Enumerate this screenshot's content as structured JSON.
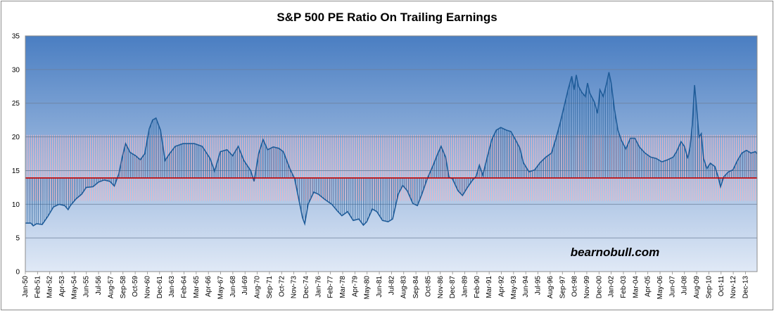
{
  "chart_data": {
    "type": "area",
    "title": "S&P 500 PE Ratio On Trailing Earnings",
    "watermark": "bearnobull.com",
    "xlabel": "",
    "ylabel": "",
    "ylim": [
      0,
      35
    ],
    "yticks": [
      "0",
      "5",
      "10",
      "15",
      "20",
      "25",
      "30",
      "35"
    ],
    "grid": true,
    "x_range": [
      1950.0,
      2014.95
    ],
    "xticks": [
      {
        "label": "Jan-50",
        "year": 1950.0
      },
      {
        "label": "Feb-51",
        "year": 1951.083
      },
      {
        "label": "Mar-52",
        "year": 1952.167
      },
      {
        "label": "Apr-53",
        "year": 1953.25
      },
      {
        "label": "May-54",
        "year": 1954.333
      },
      {
        "label": "Jun-55",
        "year": 1955.417
      },
      {
        "label": "Jul-56",
        "year": 1956.5
      },
      {
        "label": "Aug-57",
        "year": 1957.583
      },
      {
        "label": "Sep-58",
        "year": 1958.667
      },
      {
        "label": "Oct-59",
        "year": 1959.75
      },
      {
        "label": "Nov-60",
        "year": 1960.833
      },
      {
        "label": "Dec-61",
        "year": 1961.917
      },
      {
        "label": "Jan-63",
        "year": 1963.0
      },
      {
        "label": "Feb-64",
        "year": 1964.083
      },
      {
        "label": "Mar-65",
        "year": 1965.167
      },
      {
        "label": "Apr-66",
        "year": 1966.25
      },
      {
        "label": "May-67",
        "year": 1967.333
      },
      {
        "label": "Jun-68",
        "year": 1968.417
      },
      {
        "label": "Jul-69",
        "year": 1969.5
      },
      {
        "label": "Aug-70",
        "year": 1970.583
      },
      {
        "label": "Sep-71",
        "year": 1971.667
      },
      {
        "label": "Oct-72",
        "year": 1972.75
      },
      {
        "label": "Nov-73",
        "year": 1973.833
      },
      {
        "label": "Dec-74",
        "year": 1974.917
      },
      {
        "label": "Jan-76",
        "year": 1976.0
      },
      {
        "label": "Feb-77",
        "year": 1977.083
      },
      {
        "label": "Mar-78",
        "year": 1978.167
      },
      {
        "label": "Apr-79",
        "year": 1979.25
      },
      {
        "label": "May-80",
        "year": 1980.333
      },
      {
        "label": "Jun-81",
        "year": 1981.417
      },
      {
        "label": "Jul-82",
        "year": 1982.5
      },
      {
        "label": "Aug-83",
        "year": 1983.583
      },
      {
        "label": "Sep-84",
        "year": 1984.667
      },
      {
        "label": "Oct-85",
        "year": 1985.75
      },
      {
        "label": "Nov-86",
        "year": 1986.833
      },
      {
        "label": "Dec-87",
        "year": 1987.917
      },
      {
        "label": "Jan-89",
        "year": 1989.0
      },
      {
        "label": "Feb-90",
        "year": 1990.083
      },
      {
        "label": "Mar-91",
        "year": 1991.167
      },
      {
        "label": "Apr-92",
        "year": 1992.25
      },
      {
        "label": "May-93",
        "year": 1993.333
      },
      {
        "label": "Jun-94",
        "year": 1994.417
      },
      {
        "label": "Jul-95",
        "year": 1995.5
      },
      {
        "label": "Aug-96",
        "year": 1996.583
      },
      {
        "label": "Sep-97",
        "year": 1997.667
      },
      {
        "label": "Oct-98",
        "year": 1998.75
      },
      {
        "label": "Nov-99",
        "year": 1999.833
      },
      {
        "label": "Dec-00",
        "year": 2000.917
      },
      {
        "label": "Jan-02",
        "year": 2002.0
      },
      {
        "label": "Feb-03",
        "year": 2003.083
      },
      {
        "label": "Mar-04",
        "year": 2004.167
      },
      {
        "label": "Apr-05",
        "year": 2005.25
      },
      {
        "label": "May-06",
        "year": 2006.333
      },
      {
        "label": "Jun-07",
        "year": 2007.417
      },
      {
        "label": "Jul-08",
        "year": 2008.5
      },
      {
        "label": "Aug-09",
        "year": 2009.583
      },
      {
        "label": "Sep-10",
        "year": 2010.667
      },
      {
        "label": "Oct-11",
        "year": 2011.75
      },
      {
        "label": "Nov-12",
        "year": 2012.833
      },
      {
        "label": "Dec-13",
        "year": 2013.917
      }
    ],
    "mean_line": {
      "value": 13.9,
      "color": "#c00000"
    },
    "band": {
      "low": 10.5,
      "high": 20.3
    },
    "colors": {
      "plot_top": "#4a7ec2",
      "plot_bottom": "#e0e9f6",
      "series": "#1f5c99",
      "band_hatch": "#f2b3bf",
      "grid": "#6d7f9a"
    },
    "series": [
      {
        "name": "S&P 500 PE Ratio (trailing)",
        "points": [
          [
            1950.0,
            7.2
          ],
          [
            1950.5,
            7.2
          ],
          [
            1950.7,
            6.8
          ],
          [
            1951.0,
            7.1
          ],
          [
            1951.5,
            7.0
          ],
          [
            1952.0,
            8.2
          ],
          [
            1952.5,
            9.6
          ],
          [
            1953.0,
            10.0
          ],
          [
            1953.5,
            9.8
          ],
          [
            1953.8,
            9.2
          ],
          [
            1954.0,
            9.8
          ],
          [
            1954.5,
            10.8
          ],
          [
            1955.0,
            11.5
          ],
          [
            1955.4,
            12.5
          ],
          [
            1956.0,
            12.6
          ],
          [
            1956.5,
            13.3
          ],
          [
            1957.0,
            13.6
          ],
          [
            1957.5,
            13.4
          ],
          [
            1957.9,
            12.7
          ],
          [
            1958.3,
            14.5
          ],
          [
            1958.6,
            17.0
          ],
          [
            1958.9,
            19.0
          ],
          [
            1959.3,
            17.7
          ],
          [
            1959.8,
            17.2
          ],
          [
            1960.2,
            16.6
          ],
          [
            1960.6,
            17.5
          ],
          [
            1961.0,
            21.2
          ],
          [
            1961.3,
            22.5
          ],
          [
            1961.6,
            22.8
          ],
          [
            1962.0,
            21.0
          ],
          [
            1962.4,
            16.5
          ],
          [
            1962.8,
            17.5
          ],
          [
            1963.3,
            18.6
          ],
          [
            1964.0,
            19.0
          ],
          [
            1965.0,
            19.0
          ],
          [
            1965.7,
            18.6
          ],
          [
            1966.4,
            16.8
          ],
          [
            1966.8,
            14.9
          ],
          [
            1967.3,
            17.8
          ],
          [
            1967.9,
            18.1
          ],
          [
            1968.4,
            17.2
          ],
          [
            1968.9,
            18.6
          ],
          [
            1969.4,
            16.5
          ],
          [
            1970.0,
            15.0
          ],
          [
            1970.3,
            13.4
          ],
          [
            1970.7,
            17.5
          ],
          [
            1971.1,
            19.6
          ],
          [
            1971.5,
            18.1
          ],
          [
            1972.0,
            18.5
          ],
          [
            1972.5,
            18.3
          ],
          [
            1972.9,
            17.8
          ],
          [
            1973.5,
            15.2
          ],
          [
            1973.9,
            13.8
          ],
          [
            1974.3,
            10.5
          ],
          [
            1974.6,
            8.0
          ],
          [
            1974.8,
            7.1
          ],
          [
            1975.1,
            10.0
          ],
          [
            1975.6,
            11.8
          ],
          [
            1976.0,
            11.5
          ],
          [
            1976.6,
            10.7
          ],
          [
            1977.2,
            10.0
          ],
          [
            1977.7,
            9.0
          ],
          [
            1978.1,
            8.3
          ],
          [
            1978.6,
            8.9
          ],
          [
            1979.1,
            7.6
          ],
          [
            1979.6,
            7.8
          ],
          [
            1980.0,
            6.9
          ],
          [
            1980.3,
            7.4
          ],
          [
            1980.8,
            9.3
          ],
          [
            1981.2,
            8.9
          ],
          [
            1981.7,
            7.6
          ],
          [
            1982.2,
            7.4
          ],
          [
            1982.6,
            7.8
          ],
          [
            1983.1,
            11.5
          ],
          [
            1983.5,
            12.8
          ],
          [
            1983.9,
            12.0
          ],
          [
            1984.4,
            10.1
          ],
          [
            1984.8,
            9.8
          ],
          [
            1985.2,
            11.5
          ],
          [
            1985.7,
            13.9
          ],
          [
            1986.2,
            15.8
          ],
          [
            1986.6,
            17.5
          ],
          [
            1986.9,
            18.6
          ],
          [
            1987.3,
            17.0
          ],
          [
            1987.6,
            14.0
          ],
          [
            1987.9,
            13.8
          ],
          [
            1988.4,
            12.0
          ],
          [
            1988.8,
            11.3
          ],
          [
            1989.2,
            12.4
          ],
          [
            1989.7,
            13.6
          ],
          [
            1990.0,
            14.1
          ],
          [
            1990.3,
            15.8
          ],
          [
            1990.6,
            14.3
          ],
          [
            1991.0,
            17.0
          ],
          [
            1991.4,
            19.6
          ],
          [
            1991.8,
            21.0
          ],
          [
            1992.2,
            21.4
          ],
          [
            1992.7,
            21.0
          ],
          [
            1993.1,
            20.8
          ],
          [
            1993.5,
            19.6
          ],
          [
            1993.9,
            18.3
          ],
          [
            1994.2,
            16.2
          ],
          [
            1994.7,
            14.8
          ],
          [
            1995.2,
            15.1
          ],
          [
            1995.7,
            16.2
          ],
          [
            1996.2,
            17.0
          ],
          [
            1996.7,
            17.6
          ],
          [
            1997.1,
            19.8
          ],
          [
            1997.5,
            22.3
          ],
          [
            1997.9,
            25.1
          ],
          [
            1998.2,
            27.2
          ],
          [
            1998.5,
            29.0
          ],
          [
            1998.7,
            27.0
          ],
          [
            1998.9,
            29.2
          ],
          [
            1999.1,
            27.5
          ],
          [
            1999.4,
            26.6
          ],
          [
            1999.7,
            26.0
          ],
          [
            1999.9,
            28.0
          ],
          [
            2000.1,
            26.5
          ],
          [
            2000.5,
            25.2
          ],
          [
            2000.8,
            23.5
          ],
          [
            2001.0,
            27.0
          ],
          [
            2001.3,
            26.0
          ],
          [
            2001.6,
            28.0
          ],
          [
            2001.8,
            29.6
          ],
          [
            2002.0,
            28.0
          ],
          [
            2002.3,
            24.0
          ],
          [
            2002.6,
            21.0
          ],
          [
            2002.9,
            19.5
          ],
          [
            2003.3,
            18.2
          ],
          [
            2003.7,
            19.8
          ],
          [
            2004.1,
            19.8
          ],
          [
            2004.5,
            18.5
          ],
          [
            2005.0,
            17.6
          ],
          [
            2005.5,
            17.0
          ],
          [
            2006.0,
            16.8
          ],
          [
            2006.5,
            16.3
          ],
          [
            2007.0,
            16.6
          ],
          [
            2007.5,
            17.0
          ],
          [
            2007.8,
            17.8
          ],
          [
            2008.2,
            19.3
          ],
          [
            2008.5,
            18.6
          ],
          [
            2008.8,
            16.8
          ],
          [
            2009.0,
            18.5
          ],
          [
            2009.2,
            21.8
          ],
          [
            2009.4,
            27.7
          ],
          [
            2009.6,
            24.0
          ],
          [
            2009.8,
            20.0
          ],
          [
            2010.0,
            20.5
          ],
          [
            2010.2,
            16.8
          ],
          [
            2010.5,
            15.3
          ],
          [
            2010.8,
            16.1
          ],
          [
            2011.2,
            15.6
          ],
          [
            2011.5,
            14.0
          ],
          [
            2011.7,
            12.6
          ],
          [
            2012.0,
            14.1
          ],
          [
            2012.4,
            14.8
          ],
          [
            2012.8,
            15.1
          ],
          [
            2013.2,
            16.5
          ],
          [
            2013.6,
            17.6
          ],
          [
            2014.0,
            18.0
          ],
          [
            2014.4,
            17.6
          ],
          [
            2014.8,
            17.8
          ],
          [
            2014.95,
            17.5
          ]
        ]
      }
    ]
  }
}
